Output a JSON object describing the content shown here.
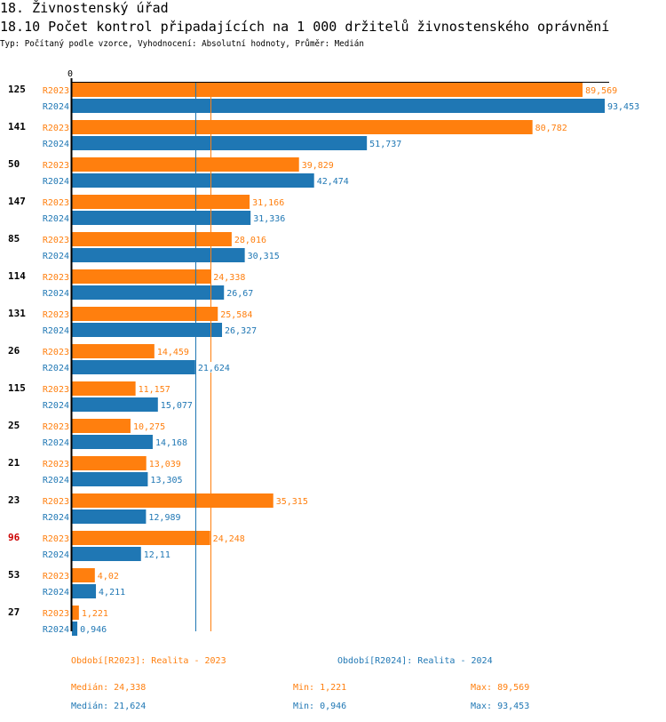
{
  "header": {
    "section_title": "18. Živnostenský úřad",
    "chart_title": "18.10 Počet kontrol připadajících na 1 000 držitelů živnostenského oprávnění",
    "subtitle": "Typ: Počítaný podle vzorce, Vyhodnocení: Absolutní hodnoty, Průměr: Medián"
  },
  "colors": {
    "r2023": "#ff7f0e",
    "r2024": "#1f77b4",
    "highlight": "#cc0000",
    "axis": "#000000"
  },
  "chart_data": {
    "type": "bar",
    "orientation": "horizontal",
    "title": "18.10 Počet kontrol připadajících na 1 000 držitelů živnostenského oprávnění",
    "xlim": [
      0,
      93.453
    ],
    "axis_zero_label": "0",
    "categories": [
      "125",
      "141",
      "50",
      "147",
      "85",
      "114",
      "131",
      "26",
      "115",
      "25",
      "21",
      "23",
      "96",
      "53",
      "27"
    ],
    "highlighted_category": "96",
    "series": [
      {
        "name": "R2023",
        "values": [
          89.569,
          80.782,
          39.829,
          31.166,
          28.016,
          24.338,
          25.584,
          14.459,
          11.157,
          10.275,
          13.039,
          35.315,
          24.248,
          4.02,
          1.221
        ],
        "labels": [
          "89,569",
          "80,782",
          "39,829",
          "31,166",
          "28,016",
          "24,338",
          "25,584",
          "14,459",
          "11,157",
          "10,275",
          "13,039",
          "35,315",
          "24,248",
          "4,02",
          "1,221"
        ]
      },
      {
        "name": "R2024",
        "values": [
          93.453,
          51.737,
          42.474,
          31.336,
          30.315,
          26.67,
          26.327,
          21.624,
          15.077,
          14.168,
          13.305,
          12.989,
          12.11,
          4.211,
          0.946
        ],
        "labels": [
          "93,453",
          "51,737",
          "42,474",
          "31,336",
          "30,315",
          "26,67",
          "26,327",
          "21,624",
          "15,077",
          "14,168",
          "13,305",
          "12,989",
          "12,11",
          "4,211",
          "0,946"
        ]
      }
    ],
    "reference_lines": [
      {
        "series": "R2024",
        "type": "median",
        "value": 21.624
      },
      {
        "series": "R2023",
        "type": "median",
        "value": 24.338
      }
    ]
  },
  "footer": {
    "legend_r2023": "Období[R2023]: Realita - 2023",
    "legend_r2024": "Období[R2024]: Realita - 2024",
    "r2023_median": "Medián: 24,338",
    "r2023_min": "Min: 1,221",
    "r2023_max": "Max: 89,569",
    "r2024_median": "Medián: 21,624",
    "r2024_min": "Min: 0,946",
    "r2024_max": "Max: 93,453"
  }
}
